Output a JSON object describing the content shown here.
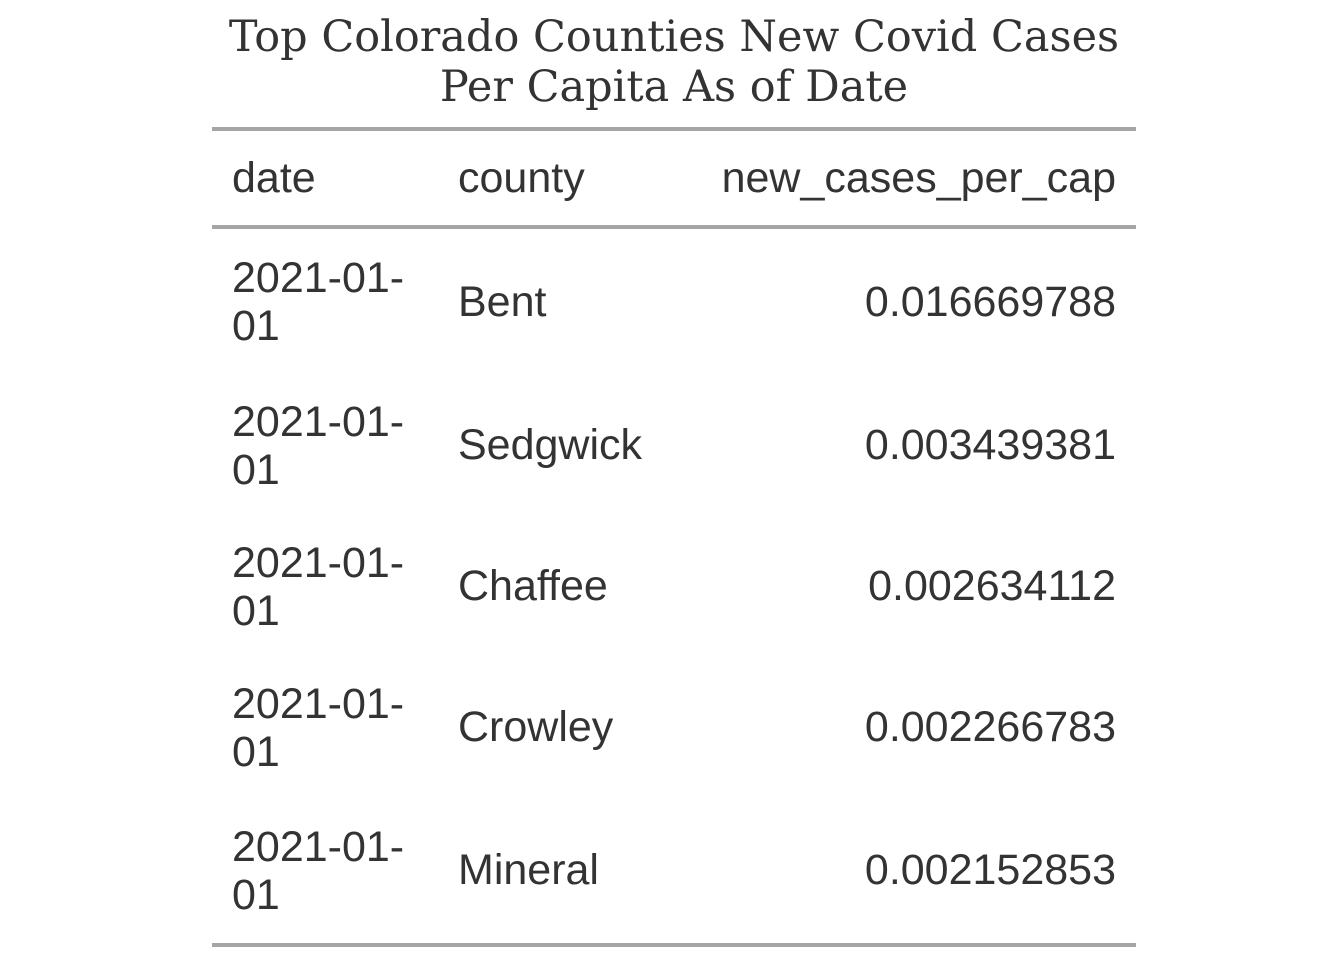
{
  "chart_data": {
    "type": "table",
    "title_line1": "Top Colorado Counties New Covid Cases",
    "title_line2": "Per Capita As of Date",
    "columns": [
      "date",
      "county",
      "new_cases_per_cap"
    ],
    "rows": [
      {
        "date_a": "2021-01-",
        "date_b": "01",
        "county": "Bent",
        "value": "0.016669788"
      },
      {
        "date_a": "2021-01-",
        "date_b": "01",
        "county": "Sedgwick",
        "value": "0.003439381"
      },
      {
        "date_a": "2021-01-",
        "date_b": "01",
        "county": "Chaffee",
        "value": "0.002634112"
      },
      {
        "date_a": "2021-01-",
        "date_b": "01",
        "county": "Crowley",
        "value": "0.002266783"
      },
      {
        "date_a": "2021-01-",
        "date_b": "01",
        "county": "Mineral",
        "value": "0.002152853"
      }
    ]
  }
}
